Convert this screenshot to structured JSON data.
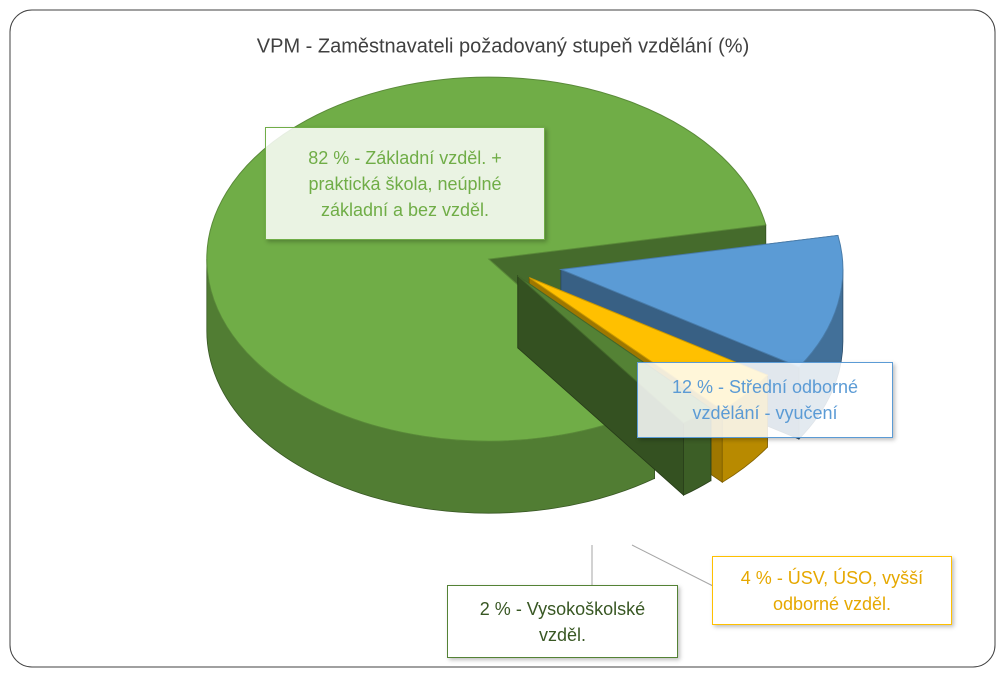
{
  "chart_data": {
    "type": "pie3d",
    "title": "VPM - Zaměstnavateli požadovaný stupeň vzdělání (%)",
    "values": [
      82,
      12,
      4,
      2
    ],
    "value_labels": [
      "82 % - Základní vzděl. + praktická škola, neúplné základní a bez vzděl.",
      "12 % - Střední odborné vzdělání - vyučení",
      "4 % - ÚSV, ÚSO, vyšší odborné vzděl.",
      "2 % - Vysokoškolské vzděl."
    ],
    "colors": [
      "#70ad47",
      "#5b9bd5",
      "#ffc000",
      "#548235"
    ]
  }
}
